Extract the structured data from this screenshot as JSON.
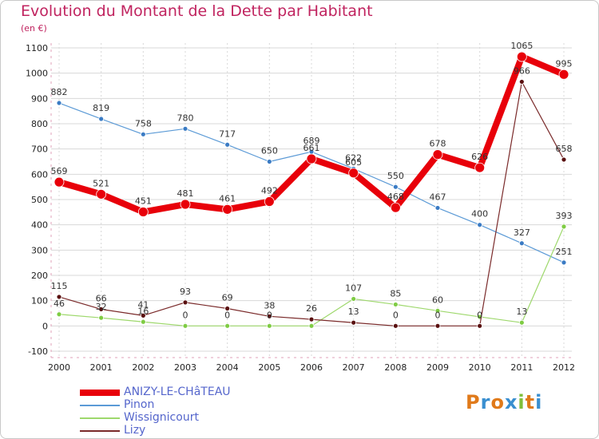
{
  "header": {
    "title": "Evolution du Montant de la Dette par Habitant",
    "subtitle": "(en €)"
  },
  "logo": {
    "text": "Proxiti"
  },
  "colors": {
    "accent": "#c0235f",
    "ANIZY-LE-CHâTEAU": "#e8000a",
    "Pinon": "#5b9ad6",
    "Wissignicourt": "#9ed86c",
    "Lizy": "#7a2a2a"
  },
  "chart_data": {
    "type": "line",
    "title": "Evolution du Montant de la Dette par Habitant",
    "subtitle": "(en €)",
    "x": [
      "2000",
      "2001",
      "2002",
      "2003",
      "2004",
      "2005",
      "2006",
      "2007",
      "2008",
      "2009",
      "2010",
      "2011",
      "2012"
    ],
    "ylim": [
      -100,
      1100
    ],
    "yticks": [
      "-100",
      "0",
      "100",
      "200",
      "300",
      "400",
      "500",
      "600",
      "700",
      "800",
      "900",
      "1000",
      "1100"
    ],
    "grid": true,
    "legend_position": "bottom-left",
    "series": [
      {
        "name": "ANIZY-LE-CHâTEAU",
        "values": [
          569,
          521,
          451,
          481,
          461,
          492,
          661,
          605,
          468,
          678,
          626,
          1065,
          995
        ],
        "labels": [
          "569",
          "521",
          "451",
          "481",
          "461",
          "492",
          "661",
          "605",
          "468",
          "678",
          "626",
          "1065",
          "995"
        ]
      },
      {
        "name": "Pinon",
        "values": [
          882,
          819,
          758,
          780,
          717,
          650,
          689,
          622,
          550,
          467,
          400,
          327,
          251
        ],
        "labels": [
          "882",
          "819",
          "758",
          "780",
          "717",
          "650",
          "689",
          "622",
          "550",
          "467",
          "400",
          "327",
          "251"
        ]
      },
      {
        "name": "Wissignicourt",
        "values": [
          46,
          32,
          16,
          0,
          0,
          0,
          0,
          107,
          85,
          60,
          36,
          13,
          393
        ],
        "labels": [
          "46",
          "32",
          "16",
          "0",
          "0",
          "0",
          "",
          "107",
          "85",
          "60",
          "",
          "13",
          "393"
        ]
      },
      {
        "name": "Lizy",
        "values": [
          115,
          66,
          41,
          93,
          69,
          38,
          26,
          13,
          0,
          0,
          0,
          966,
          658
        ],
        "labels": [
          "115",
          "66",
          "41",
          "93",
          "69",
          "38",
          "26",
          "13",
          "0",
          "0",
          "0",
          "966",
          "658"
        ]
      }
    ]
  }
}
